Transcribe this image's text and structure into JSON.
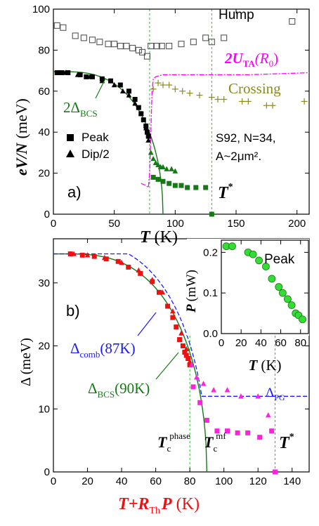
{
  "chart_data": [
    {
      "type": "scatter",
      "panel_label": "a)",
      "xlabel": {
        "main": "T",
        "unit": "(K)"
      },
      "ylabel": {
        "main": "eV/N",
        "unit": "(meV)"
      },
      "xlim": [
        0,
        210
      ],
      "ylim": [
        0,
        100
      ],
      "xticks": [
        "0",
        "50",
        "100",
        "150",
        "200"
      ],
      "yticks": [
        "0",
        "20",
        "40",
        "60",
        "80",
        "100"
      ],
      "series": [
        {
          "name": "Peak",
          "marker": "square",
          "color": "#000000",
          "x": [
            3,
            7,
            12,
            22,
            27,
            32,
            40,
            47,
            55,
            62,
            67,
            70,
            72,
            74,
            76,
            77,
            78
          ],
          "y": [
            69,
            69,
            69,
            68,
            67,
            67,
            66,
            65,
            63,
            60,
            56,
            52,
            49,
            46,
            43,
            40,
            38
          ]
        },
        {
          "marker": "triangle",
          "name": "Dip/2",
          "color": "#000000",
          "x": [
            5,
            10,
            20,
            30,
            40,
            50,
            57,
            62,
            67,
            72,
            76,
            78
          ],
          "y": [
            69,
            69,
            68,
            67,
            65,
            63,
            60,
            58,
            54,
            49,
            42,
            36
          ]
        },
        {
          "name": "Hump",
          "marker": "open-square",
          "color": "#555555",
          "x": [
            3,
            8,
            18,
            25,
            32,
            38,
            45,
            50,
            55,
            60,
            65,
            70,
            73,
            77,
            80,
            85,
            89,
            95,
            105,
            115,
            125,
            130,
            140,
            196
          ],
          "y": [
            92,
            91,
            87,
            86,
            85,
            84,
            83,
            83,
            82,
            82,
            81,
            80,
            79,
            77,
            82,
            82,
            82,
            82,
            83,
            84,
            86,
            84,
            86,
            94
          ]
        },
        {
          "name": "Crossing",
          "marker": "plus",
          "color": "#8c8a1c",
          "x": [
            82,
            86,
            90,
            95,
            100,
            106,
            112,
            120,
            130,
            135,
            140,
            155,
            160,
            175,
            180,
            206
          ],
          "y": [
            61,
            64,
            63,
            63,
            61,
            60,
            59,
            58,
            57,
            56,
            56,
            55,
            55,
            53,
            53,
            55
          ]
        },
        {
          "name": "Peak_T>Tc",
          "marker": "square",
          "color": "#157a15",
          "x": [
            82,
            86,
            90,
            95,
            100,
            105,
            110,
            117,
            125,
            130
          ],
          "y": [
            18,
            17,
            16,
            15,
            14,
            14,
            13,
            13,
            13,
            0
          ]
        },
        {
          "name": "Dip_T>Tc",
          "marker": "triangle",
          "color": "#157a15",
          "x": [
            80,
            82,
            84,
            86,
            88,
            90,
            93,
            97,
            100
          ],
          "y": [
            30,
            27,
            25,
            24,
            23,
            23,
            22,
            22,
            21
          ]
        }
      ],
      "curves": [
        {
          "name": "2Δ_BCS",
          "color": "#157a15"
        },
        {
          "name": "2U_TA(R0)",
          "color": "#ff00ff"
        }
      ],
      "annotations": {
        "hump": "Hump",
        "crossing": "Crossing",
        "two_u_ta_main": "2U",
        "two_u_ta_sub": "TA",
        "two_u_ta_arg": "(R",
        "two_u_ta_arg_sub": "0",
        "two_u_ta_close": ")",
        "delta_bcs_main": "2Δ",
        "delta_bcs_sub": "BCS",
        "sample_line1": "S92, N=34,",
        "sample_line2": "A~2μm².",
        "tstar": "T",
        "tstar_sup": "*"
      },
      "vlines": [
        {
          "x": 79,
          "color": "#22c422"
        },
        {
          "x": 130,
          "color": "#22c422"
        }
      ]
    },
    {
      "type": "scatter",
      "panel_label": "b)",
      "xlabel": {
        "main": "T+R",
        "sub": "Th",
        "main2": "P",
        "unit": "(K)"
      },
      "ylabel": "Δ (meV)",
      "xlim": [
        0,
        150
      ],
      "ylim": [
        0,
        37
      ],
      "xticks": [
        "0",
        "20",
        "40",
        "60",
        "80",
        "100",
        "120",
        "140"
      ],
      "yticks": [
        "0",
        "10",
        "20",
        "30"
      ],
      "series": [
        {
          "name": "Peak (red)",
          "marker": "square",
          "color": "#ee1111",
          "x": [
            10,
            17,
            24,
            31,
            38,
            44,
            51,
            58,
            62,
            67,
            70,
            72,
            74,
            76,
            77,
            78,
            79,
            80
          ],
          "y": [
            34.6,
            34.4,
            34.2,
            33.8,
            33.4,
            32.5,
            31.5,
            30.2,
            28.5,
            26.3,
            24.5,
            23,
            21,
            20,
            19,
            18.5,
            18,
            17
          ]
        },
        {
          "name": "Dip (red)",
          "marker": "triangle",
          "color": "#ee1111",
          "x": [
            12,
            20,
            30,
            40,
            50,
            58,
            64,
            70,
            75,
            78,
            80
          ],
          "y": [
            34.6,
            34.4,
            34,
            33.2,
            32,
            30.5,
            28.5,
            25.5,
            22,
            19.5,
            17.5
          ]
        },
        {
          "name": "Peak (magenta)",
          "marker": "square",
          "color": "#ff22dd",
          "x": [
            82,
            86,
            90,
            96,
            102,
            108,
            114,
            121,
            128,
            130
          ],
          "y": [
            13.5,
            11,
            8.2,
            6.5,
            6.5,
            6.2,
            6.2,
            5.5,
            6.5,
            0
          ]
        },
        {
          "name": "Dip (magenta)",
          "marker": "triangle",
          "color": "#ff22dd",
          "x": [
            81,
            84,
            88,
            94,
            102,
            110,
            120,
            126
          ],
          "y": [
            17,
            15,
            14,
            13,
            13,
            12,
            12,
            9
          ]
        }
      ],
      "curves": [
        {
          "name": "Δ_comb(87K)",
          "color": "#1a1aff"
        },
        {
          "name": "Δ_BCS(90K)",
          "color": "#157a15"
        }
      ],
      "annotations": {
        "comb_main": "Δ",
        "comb_sub": "comb",
        "comb_arg": "(87K)",
        "bcs_main": "Δ",
        "bcs_sub": "BCS",
        "bcs_arg": "(90K)",
        "pg_main": "Δ",
        "pg_sub": "PG",
        "tc_phase_main": "T",
        "tc_phase_sub": "c",
        "tc_phase_sup": "phase",
        "tc_mf_main": "T",
        "tc_mf_sub": "c",
        "tc_mf_sup": "mf",
        "tstar": "T",
        "tstar_sup": "*"
      },
      "vlines": [
        {
          "x": 80,
          "color": "#22c422"
        },
        {
          "x": 130,
          "color": "#22c422"
        }
      ]
    },
    {
      "type": "scatter",
      "title": "Peak",
      "xlabel": {
        "main": "T",
        "unit": "(K)"
      },
      "ylabel": {
        "main": "P",
        "unit": "(mW)"
      },
      "xlim": [
        0,
        88
      ],
      "ylim": [
        0,
        0.23
      ],
      "xticks": [
        "0",
        "20",
        "40",
        "60",
        "80"
      ],
      "yticks": [
        "0.0",
        "0.1",
        "0.2"
      ],
      "series": [
        {
          "marker": "circle",
          "color": "#33dd33",
          "x": [
            5,
            11,
            27,
            32,
            38,
            45,
            51,
            58,
            62,
            67,
            71,
            75,
            78,
            82
          ],
          "y": [
            0.215,
            0.215,
            0.2,
            0.195,
            0.18,
            0.165,
            0.135,
            0.115,
            0.1,
            0.085,
            0.07,
            0.05,
            0.045,
            0.035
          ]
        }
      ]
    }
  ]
}
